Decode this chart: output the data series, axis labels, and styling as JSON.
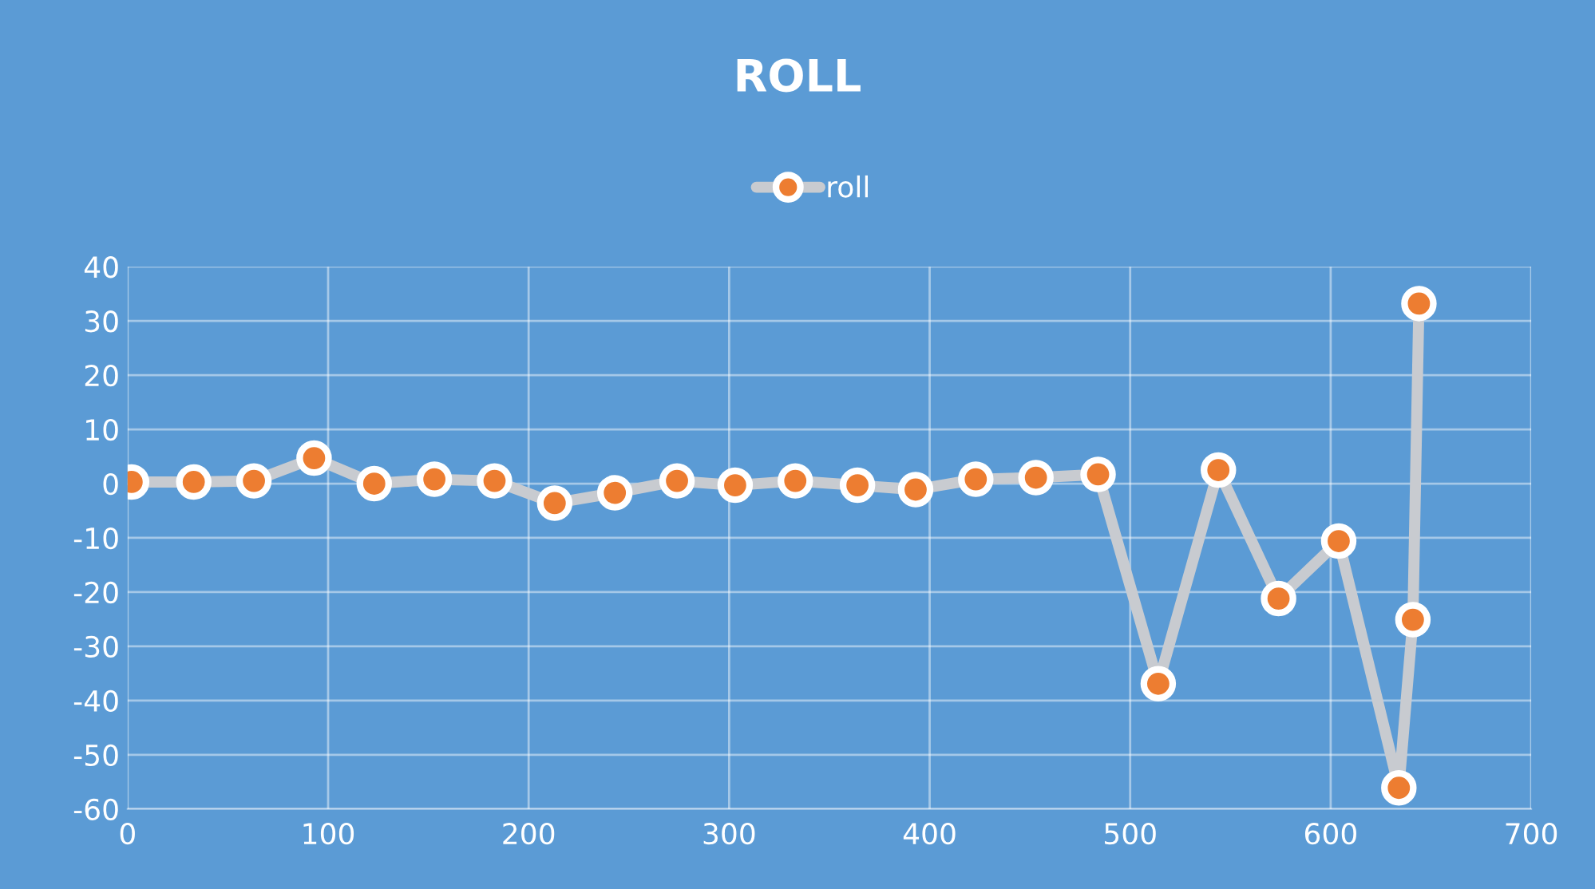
{
  "chart_data": {
    "type": "line",
    "title": "ROLL",
    "x": [
      2,
      33,
      63,
      93,
      123,
      153,
      183,
      213,
      243,
      274,
      303,
      333,
      364,
      393,
      423,
      453,
      484,
      514,
      544,
      574,
      604,
      634,
      641,
      644
    ],
    "series": [
      {
        "name": "roll",
        "color": "#ed7d31",
        "values": [
          0.3,
          0.3,
          0.5,
          4.7,
          0,
          0.8,
          0.5,
          -3.6,
          -1.7,
          0.5,
          -0.3,
          0.5,
          -0.3,
          -1.1,
          0.8,
          1.1,
          1.7,
          -36.9,
          2.5,
          -21.2,
          -10.6,
          -56.1,
          -25.1,
          33.2
        ]
      }
    ],
    "xlim": [
      0,
      700
    ],
    "xticks": [
      0,
      100,
      200,
      300,
      400,
      500,
      600,
      700
    ],
    "ylim": [
      -60,
      40
    ],
    "yticks": [
      -60,
      -50,
      -40,
      -30,
      -20,
      -10,
      0,
      10,
      20,
      30,
      40
    ],
    "grid": true,
    "legend": "top",
    "marker": "circle"
  }
}
